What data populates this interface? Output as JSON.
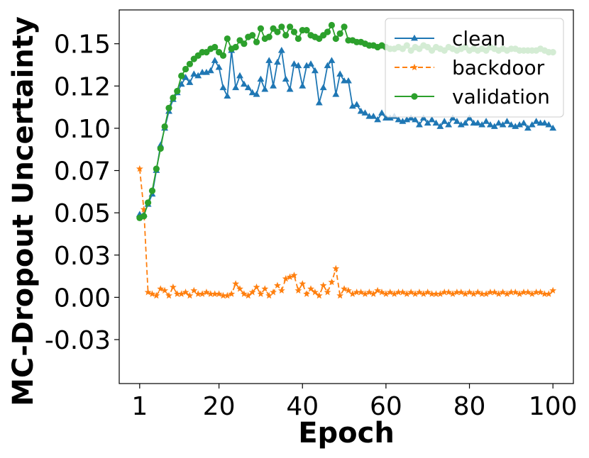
{
  "chart_data": {
    "type": "line",
    "title": "",
    "xlabel": "Epoch",
    "ylabel": "MC-Dropout Uncertainty",
    "xlim": [
      -3.9,
      104.9
    ],
    "ylim": [
      -0.051,
      0.17
    ],
    "xticks": [
      1,
      20,
      40,
      60,
      80,
      100
    ],
    "xtick_labels": [
      "1",
      "20",
      "40",
      "60",
      "80",
      "100"
    ],
    "yticks": [
      -0.025,
      0,
      0.025,
      0.05,
      0.075,
      0.1,
      0.125,
      0.15
    ],
    "ytick_labels": [
      "-0.03",
      "0.00",
      "0.03",
      "0.05",
      "0.07",
      "0.10",
      "0.12",
      "0.15"
    ],
    "grid": false,
    "legend": "upper right",
    "series": [
      {
        "name": "clean",
        "color": "#1f77b4",
        "linestyle": "solid",
        "marker": "triangle",
        "x": [
          1,
          2,
          3,
          4,
          5,
          6,
          7,
          8,
          9,
          10,
          11,
          12,
          13,
          14,
          15,
          16,
          17,
          18,
          19,
          20,
          21,
          22,
          23,
          24,
          25,
          26,
          27,
          28,
          29,
          30,
          31,
          32,
          33,
          34,
          35,
          36,
          37,
          38,
          39,
          40,
          41,
          42,
          43,
          44,
          45,
          46,
          47,
          48,
          49,
          50,
          51,
          52,
          53,
          54,
          55,
          56,
          57,
          58,
          59,
          60,
          61,
          62,
          63,
          64,
          65,
          66,
          67,
          68,
          69,
          70,
          71,
          72,
          73,
          74,
          75,
          76,
          77,
          78,
          79,
          80,
          81,
          82,
          83,
          84,
          85,
          86,
          87,
          88,
          89,
          90,
          91,
          92,
          93,
          94,
          95,
          96,
          97,
          98,
          99,
          100
        ],
        "y": [
          0.049,
          0.049,
          0.055,
          0.061,
          0.075,
          0.09,
          0.1,
          0.11,
          0.117,
          0.121,
          0.126,
          0.13,
          0.127,
          0.132,
          0.131,
          0.133,
          0.133,
          0.134,
          0.14,
          0.136,
          0.124,
          0.119,
          0.146,
          0.124,
          0.131,
          0.126,
          0.124,
          0.121,
          0.12,
          0.129,
          0.123,
          0.14,
          0.125,
          0.139,
          0.146,
          0.129,
          0.123,
          0.138,
          0.137,
          0.125,
          0.137,
          0.138,
          0.134,
          0.115,
          0.124,
          0.137,
          0.14,
          0.12,
          0.132,
          0.128,
          0.128,
          0.113,
          0.114,
          0.11,
          0.109,
          0.107,
          0.107,
          0.105,
          0.109,
          0.106,
          0.106,
          0.107,
          0.105,
          0.104,
          0.105,
          0.106,
          0.105,
          0.102,
          0.106,
          0.103,
          0.105,
          0.103,
          0.101,
          0.104,
          0.102,
          0.106,
          0.104,
          0.102,
          0.103,
          0.106,
          0.103,
          0.103,
          0.102,
          0.104,
          0.102,
          0.101,
          0.103,
          0.102,
          0.104,
          0.102,
          0.101,
          0.102,
          0.103,
          0.1,
          0.102,
          0.104,
          0.103,
          0.103,
          0.102,
          0.1
        ]
      },
      {
        "name": "backdoor",
        "color": "#ff7f0e",
        "linestyle": "dashed",
        "marker": "star",
        "x": [
          1,
          2,
          3,
          4,
          5,
          6,
          7,
          8,
          9,
          10,
          11,
          12,
          13,
          14,
          15,
          16,
          17,
          18,
          19,
          20,
          21,
          22,
          23,
          24,
          25,
          26,
          27,
          28,
          29,
          30,
          31,
          32,
          33,
          34,
          35,
          36,
          37,
          38,
          39,
          40,
          41,
          42,
          43,
          44,
          45,
          46,
          47,
          48,
          49,
          50,
          51,
          52,
          53,
          54,
          55,
          56,
          57,
          58,
          59,
          60,
          61,
          62,
          63,
          64,
          65,
          66,
          67,
          68,
          69,
          70,
          71,
          72,
          73,
          74,
          75,
          76,
          77,
          78,
          79,
          80,
          81,
          82,
          83,
          84,
          85,
          86,
          87,
          88,
          89,
          90,
          91,
          92,
          93,
          94,
          95,
          96,
          97,
          98,
          99,
          100
        ],
        "y": [
          0.076,
          0.052,
          0.003,
          0.002,
          0.001,
          0.005,
          0.004,
          0.001,
          0.006,
          0.002,
          0.002,
          0.003,
          0.001,
          0.004,
          0.002,
          0.002,
          0.003,
          0.002,
          0.002,
          0.002,
          0.001,
          0.001,
          0.002,
          0.008,
          0.005,
          0.002,
          0.001,
          0.003,
          0.006,
          0.002,
          0.005,
          0.001,
          0.003,
          0.007,
          0.004,
          0.011,
          0.012,
          0.013,
          0.004,
          0.008,
          0.002,
          0.005,
          0.003,
          0.001,
          0.007,
          0.003,
          0.009,
          0.017,
          0.001,
          0.005,
          0.004,
          0.002,
          0.003,
          0.003,
          0.002,
          0.003,
          0.002,
          0.004,
          0.003,
          0.002,
          0.003,
          0.002,
          0.003,
          0.003,
          0.002,
          0.003,
          0.002,
          0.003,
          0.002,
          0.003,
          0.002,
          0.002,
          0.002,
          0.003,
          0.003,
          0.002,
          0.003,
          0.003,
          0.002,
          0.003,
          0.002,
          0.003,
          0.002,
          0.002,
          0.003,
          0.003,
          0.002,
          0.003,
          0.002,
          0.003,
          0.003,
          0.002,
          0.003,
          0.003,
          0.002,
          0.003,
          0.003,
          0.002,
          0.002,
          0.004
        ]
      },
      {
        "name": "validation",
        "color": "#2ca02c",
        "linestyle": "solid",
        "marker": "circle",
        "x": [
          1,
          2,
          3,
          4,
          5,
          6,
          7,
          8,
          9,
          10,
          11,
          12,
          13,
          14,
          15,
          16,
          17,
          18,
          19,
          20,
          21,
          22,
          23,
          24,
          25,
          26,
          27,
          28,
          29,
          30,
          31,
          32,
          33,
          34,
          35,
          36,
          37,
          38,
          39,
          40,
          41,
          42,
          43,
          44,
          45,
          46,
          47,
          48,
          49,
          50,
          51,
          52,
          53,
          54,
          55,
          56,
          57,
          58,
          59,
          60,
          61,
          62,
          63,
          64,
          65,
          66,
          67,
          68,
          69,
          70,
          71,
          72,
          73,
          74,
          75,
          76,
          77,
          78,
          79,
          80,
          81,
          82,
          83,
          84,
          85,
          86,
          87,
          88,
          89,
          90,
          91,
          92,
          93,
          94,
          95,
          96,
          97,
          98,
          99,
          100
        ],
        "y": [
          0.047,
          0.048,
          0.056,
          0.063,
          0.076,
          0.088,
          0.101,
          0.112,
          0.118,
          0.122,
          0.131,
          0.135,
          0.138,
          0.141,
          0.143,
          0.145,
          0.145,
          0.147,
          0.148,
          0.145,
          0.143,
          0.153,
          0.147,
          0.148,
          0.152,
          0.15,
          0.154,
          0.155,
          0.151,
          0.159,
          0.153,
          0.154,
          0.159,
          0.157,
          0.16,
          0.155,
          0.16,
          0.157,
          0.153,
          0.158,
          0.158,
          0.155,
          0.154,
          0.153,
          0.155,
          0.157,
          0.161,
          0.153,
          0.156,
          0.16,
          0.152,
          0.152,
          0.151,
          0.151,
          0.15,
          0.149,
          0.149,
          0.148,
          0.149,
          0.148,
          0.147,
          0.147,
          0.148,
          0.147,
          0.149,
          0.146,
          0.148,
          0.147,
          0.149,
          0.148,
          0.146,
          0.148,
          0.147,
          0.146,
          0.148,
          0.147,
          0.146,
          0.147,
          0.148,
          0.146,
          0.147,
          0.146,
          0.147,
          0.146,
          0.148,
          0.147,
          0.146,
          0.147,
          0.146,
          0.147,
          0.147,
          0.146,
          0.146,
          0.146,
          0.146,
          0.146,
          0.147,
          0.146,
          0.145,
          0.145
        ]
      }
    ]
  }
}
